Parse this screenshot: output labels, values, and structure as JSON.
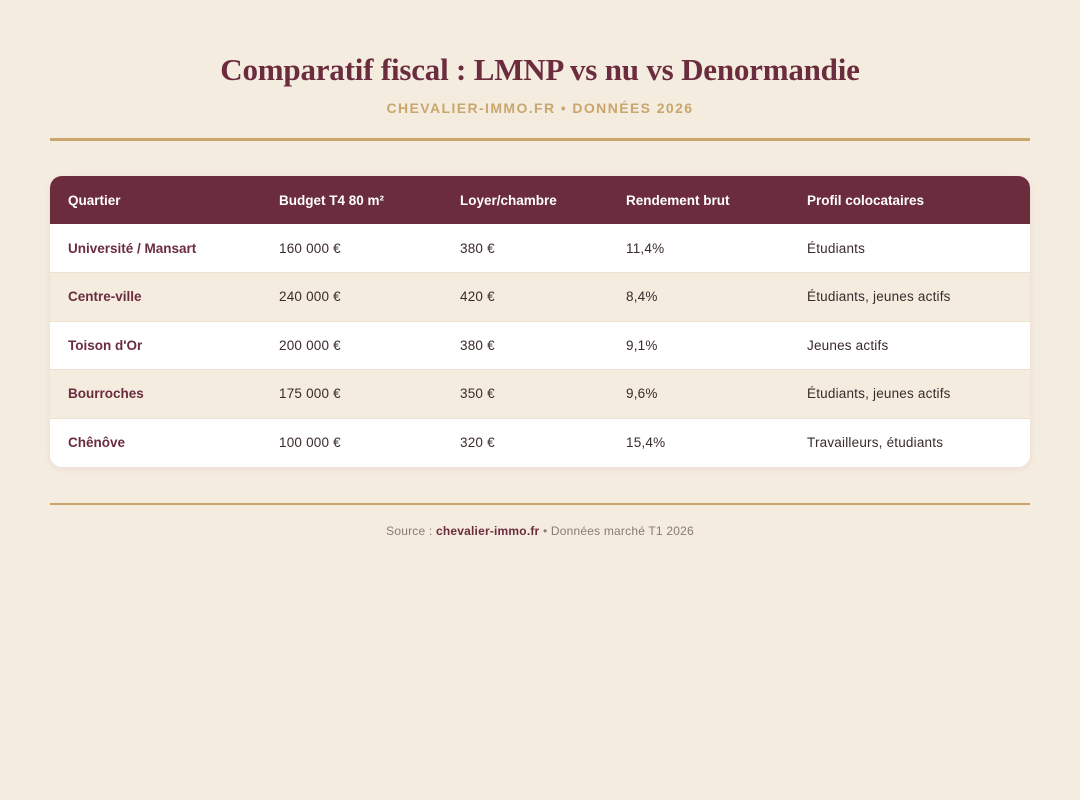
{
  "header": {
    "title": "Comparatif fiscal : LMNP vs nu vs Denormandie",
    "subtitle": "CHEVALIER-IMMO.FR • DONNÉES 2026"
  },
  "table": {
    "columns": [
      "Quartier",
      "Budget T4 80 m²",
      "Loyer/chambre",
      "Rendement brut",
      "Profil colocataires"
    ],
    "rows": [
      {
        "quartier": "Université / Mansart",
        "budget": "160 000 €",
        "loyer": "380 €",
        "rendement": "11,4%",
        "profil": "Étudiants"
      },
      {
        "quartier": "Centre-ville",
        "budget": "240 000 €",
        "loyer": "420 €",
        "rendement": "8,4%",
        "profil": "Étudiants, jeunes actifs"
      },
      {
        "quartier": "Toison d'Or",
        "budget": "200 000 €",
        "loyer": "380 €",
        "rendement": "9,1%",
        "profil": "Jeunes actifs"
      },
      {
        "quartier": "Bourroches",
        "budget": "175 000 €",
        "loyer": "350 €",
        "rendement": "9,6%",
        "profil": "Étudiants, jeunes actifs"
      },
      {
        "quartier": "Chênôve",
        "budget": "100 000 €",
        "loyer": "320 €",
        "rendement": "15,4%",
        "profil": "Travailleurs, étudiants"
      }
    ]
  },
  "footer": {
    "prefix": "Source : ",
    "brand": "chevalier-immo.fr",
    "suffix": " • Données marché T1 2026"
  },
  "colors": {
    "background": "#f5ece0",
    "primary": "#6b2c3e",
    "accent": "#c9a66b",
    "row_alt": "#f5ece0",
    "row": "#ffffff"
  }
}
